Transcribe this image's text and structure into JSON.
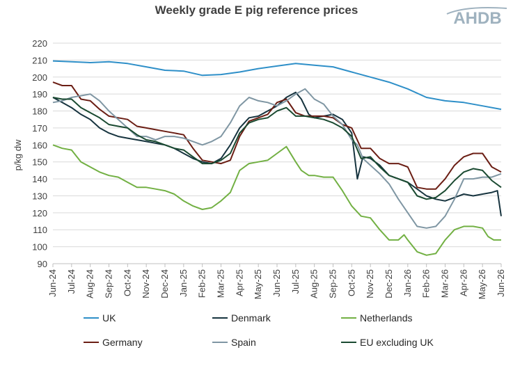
{
  "chart_data": {
    "type": "line",
    "title": "Weekly grade E pig reference prices",
    "logo_text": "AHDB",
    "ylabel": "p/kg dw",
    "xlabel": "",
    "ylim": [
      90,
      220
    ],
    "yticks": [
      90,
      100,
      110,
      120,
      130,
      140,
      150,
      160,
      170,
      180,
      190,
      200,
      210,
      220
    ],
    "grid": "horizontal",
    "legend_position": "bottom",
    "x_labels": [
      "Jun-24",
      "Jul-24",
      "Aug-24",
      "Sep-24",
      "Oct-24",
      "Nov-24",
      "Dec-24",
      "Jan-25",
      "Feb-25",
      "Mar-25",
      "Apr-25",
      "May-25",
      "Jun-25",
      "Jul-25",
      "Aug-25",
      "Sep-25",
      "Oct-25",
      "Nov-25",
      "Dec-25",
      "Jan-26",
      "Feb-26",
      "Mar-26",
      "Apr-26",
      "May-26",
      "Jun-26"
    ],
    "series": [
      {
        "name": "UK",
        "color": "#2E8FC8",
        "points": [
          [
            0,
            209.5
          ],
          [
            1,
            209
          ],
          [
            2,
            208.5
          ],
          [
            3,
            209
          ],
          [
            4,
            208
          ],
          [
            5,
            206
          ],
          [
            6,
            204
          ],
          [
            7,
            203.5
          ],
          [
            8,
            201
          ],
          [
            9,
            201.5
          ],
          [
            10,
            203
          ],
          [
            11,
            205
          ],
          [
            12,
            206.5
          ],
          [
            13,
            208
          ],
          [
            14,
            207
          ],
          [
            15,
            206
          ],
          [
            16,
            203
          ],
          [
            17,
            200
          ],
          [
            18,
            197
          ],
          [
            19,
            193
          ],
          [
            20,
            188
          ],
          [
            21,
            186
          ],
          [
            22,
            185
          ],
          [
            23,
            183
          ],
          [
            24,
            181
          ]
        ]
      },
      {
        "name": "Denmark",
        "color": "#17343F",
        "points": [
          [
            0,
            188
          ],
          [
            0.5,
            185
          ],
          [
            1,
            182
          ],
          [
            1.5,
            178
          ],
          [
            2,
            175
          ],
          [
            2.5,
            170
          ],
          [
            3,
            167
          ],
          [
            3.5,
            165
          ],
          [
            4,
            164
          ],
          [
            5,
            162
          ],
          [
            6,
            160
          ],
          [
            6.5,
            158
          ],
          [
            7,
            155
          ],
          [
            7.5,
            152
          ],
          [
            8,
            150
          ],
          [
            8.5,
            149
          ],
          [
            9,
            152
          ],
          [
            9.5,
            160
          ],
          [
            10,
            170
          ],
          [
            10.5,
            176
          ],
          [
            11,
            177
          ],
          [
            11.5,
            180
          ],
          [
            12,
            183
          ],
          [
            12.5,
            188
          ],
          [
            13,
            191
          ],
          [
            13.3,
            187
          ],
          [
            13.7,
            178
          ],
          [
            14,
            176
          ],
          [
            14.5,
            177
          ],
          [
            15,
            178
          ],
          [
            15.5,
            175
          ],
          [
            16,
            167
          ],
          [
            16.3,
            140
          ],
          [
            16.6,
            153
          ],
          [
            17,
            152
          ],
          [
            17.5,
            148
          ],
          [
            18,
            142
          ],
          [
            18.5,
            140
          ],
          [
            19,
            138
          ],
          [
            19.5,
            134
          ],
          [
            20,
            130
          ],
          [
            20.5,
            128
          ],
          [
            21,
            127
          ],
          [
            21.5,
            129
          ],
          [
            22,
            131
          ],
          [
            22.5,
            130
          ],
          [
            23,
            131
          ],
          [
            23.5,
            132
          ],
          [
            23.8,
            133
          ],
          [
            24,
            118
          ]
        ]
      },
      {
        "name": "Netherlands",
        "color": "#72B043",
        "points": [
          [
            0,
            160
          ],
          [
            0.5,
            158
          ],
          [
            1,
            157
          ],
          [
            1.5,
            150
          ],
          [
            2,
            147
          ],
          [
            2.5,
            144
          ],
          [
            3,
            142
          ],
          [
            3.5,
            141
          ],
          [
            4,
            138
          ],
          [
            4.5,
            135
          ],
          [
            5,
            135
          ],
          [
            5.5,
            134
          ],
          [
            6,
            133
          ],
          [
            6.5,
            131
          ],
          [
            7,
            127
          ],
          [
            7.5,
            124
          ],
          [
            8,
            122
          ],
          [
            8.5,
            123
          ],
          [
            9,
            127
          ],
          [
            9.5,
            132
          ],
          [
            10,
            145
          ],
          [
            10.5,
            149
          ],
          [
            11,
            150
          ],
          [
            11.5,
            151
          ],
          [
            12,
            155
          ],
          [
            12.5,
            159
          ],
          [
            13,
            150
          ],
          [
            13.3,
            145
          ],
          [
            13.7,
            142
          ],
          [
            14,
            142
          ],
          [
            14.5,
            141
          ],
          [
            15,
            141
          ],
          [
            15.5,
            133
          ],
          [
            16,
            124
          ],
          [
            16.5,
            118
          ],
          [
            17,
            117
          ],
          [
            17.5,
            110
          ],
          [
            18,
            104
          ],
          [
            18.5,
            104
          ],
          [
            18.8,
            107
          ],
          [
            19,
            104
          ],
          [
            19.5,
            97
          ],
          [
            20,
            95
          ],
          [
            20.5,
            96
          ],
          [
            21,
            104
          ],
          [
            21.5,
            110
          ],
          [
            22,
            112
          ],
          [
            22.5,
            112
          ],
          [
            23,
            111
          ],
          [
            23.3,
            106
          ],
          [
            23.6,
            104
          ],
          [
            24,
            104
          ]
        ]
      },
      {
        "name": "Germany",
        "color": "#6B1E14",
        "points": [
          [
            0,
            197
          ],
          [
            0.5,
            195
          ],
          [
            1,
            195
          ],
          [
            1.5,
            187
          ],
          [
            2,
            186
          ],
          [
            2.5,
            181
          ],
          [
            3,
            177
          ],
          [
            3.5,
            176
          ],
          [
            4,
            175
          ],
          [
            4.5,
            171
          ],
          [
            5,
            170
          ],
          [
            5.5,
            169
          ],
          [
            6,
            168
          ],
          [
            6.5,
            167
          ],
          [
            7,
            166
          ],
          [
            7.5,
            158
          ],
          [
            8,
            151
          ],
          [
            8.5,
            150
          ],
          [
            9,
            149
          ],
          [
            9.5,
            151
          ],
          [
            10,
            165
          ],
          [
            10.5,
            174
          ],
          [
            11,
            176
          ],
          [
            11.5,
            178
          ],
          [
            12,
            185
          ],
          [
            12.5,
            187
          ],
          [
            13,
            179
          ],
          [
            13.5,
            177
          ],
          [
            14,
            177
          ],
          [
            14.5,
            177
          ],
          [
            15,
            176
          ],
          [
            15.5,
            172
          ],
          [
            16,
            170
          ],
          [
            16.5,
            158
          ],
          [
            17,
            158
          ],
          [
            17.5,
            152
          ],
          [
            18,
            149
          ],
          [
            18.5,
            149
          ],
          [
            19,
            147
          ],
          [
            19.5,
            135
          ],
          [
            20,
            134
          ],
          [
            20.5,
            134
          ],
          [
            21,
            140
          ],
          [
            21.5,
            148
          ],
          [
            22,
            153
          ],
          [
            22.5,
            155
          ],
          [
            23,
            155
          ],
          [
            23.5,
            147
          ],
          [
            24,
            144
          ]
        ]
      },
      {
        "name": "Spain",
        "color": "#7F96A3",
        "points": [
          [
            0,
            185
          ],
          [
            0.5,
            186
          ],
          [
            1,
            188
          ],
          [
            1.5,
            189
          ],
          [
            2,
            190
          ],
          [
            2.5,
            186
          ],
          [
            3,
            180
          ],
          [
            3.5,
            175
          ],
          [
            4,
            170
          ],
          [
            4.5,
            165
          ],
          [
            5,
            165
          ],
          [
            5.5,
            163
          ],
          [
            6,
            165
          ],
          [
            6.5,
            165
          ],
          [
            7,
            164
          ],
          [
            7.5,
            162
          ],
          [
            8,
            160
          ],
          [
            8.5,
            162
          ],
          [
            9,
            165
          ],
          [
            9.5,
            173
          ],
          [
            10,
            183
          ],
          [
            10.5,
            188
          ],
          [
            11,
            186
          ],
          [
            11.5,
            185
          ],
          [
            12,
            183
          ],
          [
            12.5,
            186
          ],
          [
            13,
            190
          ],
          [
            13.5,
            193
          ],
          [
            14,
            187
          ],
          [
            14.5,
            184
          ],
          [
            15,
            177
          ],
          [
            15.5,
            172
          ],
          [
            16,
            163
          ],
          [
            16.3,
            160
          ],
          [
            16.6,
            152
          ],
          [
            17,
            148
          ],
          [
            17.5,
            143
          ],
          [
            18,
            137
          ],
          [
            18.5,
            128
          ],
          [
            19,
            120
          ],
          [
            19.5,
            112
          ],
          [
            20,
            111
          ],
          [
            20.5,
            112
          ],
          [
            21,
            118
          ],
          [
            21.5,
            128
          ],
          [
            22,
            140
          ],
          [
            22.5,
            140
          ],
          [
            23,
            141
          ],
          [
            23.5,
            141
          ],
          [
            24,
            143
          ]
        ]
      },
      {
        "name": "EU excluding UK",
        "color": "#1A4A31",
        "points": [
          [
            0,
            188
          ],
          [
            0.5,
            187
          ],
          [
            1,
            187
          ],
          [
            1.5,
            182
          ],
          [
            2,
            179
          ],
          [
            2.5,
            176
          ],
          [
            3,
            172
          ],
          [
            3.5,
            171
          ],
          [
            4,
            170
          ],
          [
            4.5,
            166
          ],
          [
            5,
            163
          ],
          [
            5.5,
            162
          ],
          [
            6,
            160
          ],
          [
            6.5,
            158
          ],
          [
            7,
            157
          ],
          [
            7.5,
            153
          ],
          [
            8,
            149
          ],
          [
            8.5,
            149
          ],
          [
            9,
            151
          ],
          [
            9.5,
            155
          ],
          [
            10,
            167
          ],
          [
            10.5,
            173
          ],
          [
            11,
            175
          ],
          [
            11.5,
            176
          ],
          [
            12,
            180
          ],
          [
            12.5,
            182
          ],
          [
            13,
            177
          ],
          [
            13.5,
            177
          ],
          [
            14,
            176
          ],
          [
            14.5,
            175
          ],
          [
            15,
            173
          ],
          [
            15.5,
            170
          ],
          [
            16,
            165
          ],
          [
            16.5,
            152
          ],
          [
            17,
            153
          ],
          [
            17.5,
            147
          ],
          [
            18,
            142
          ],
          [
            18.5,
            140
          ],
          [
            19,
            138
          ],
          [
            19.5,
            130
          ],
          [
            20,
            128
          ],
          [
            20.5,
            129
          ],
          [
            21,
            133
          ],
          [
            21.5,
            139
          ],
          [
            22,
            144
          ],
          [
            22.5,
            146
          ],
          [
            23,
            145
          ],
          [
            23.5,
            139
          ],
          [
            24,
            135
          ]
        ]
      }
    ]
  }
}
